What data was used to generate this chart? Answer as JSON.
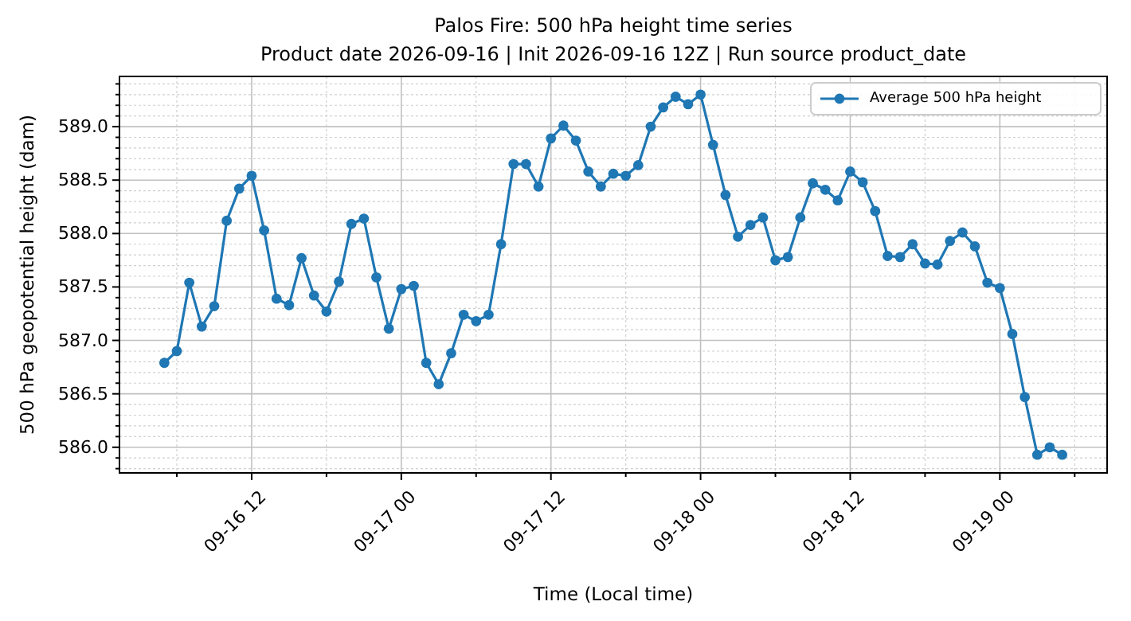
{
  "chart_data": {
    "type": "line",
    "title": "Palos Fire: 500 hPa height time series",
    "subtitle": "Product date 2026-09-16 | Init 2026-09-16 12Z | Run source product_date",
    "xlabel": "Time (Local time)",
    "ylabel": "500 hPa geopotential height (dam)",
    "x": [
      "2026-09-16T05:00",
      "2026-09-16T06:00",
      "2026-09-16T07:00",
      "2026-09-16T08:00",
      "2026-09-16T09:00",
      "2026-09-16T10:00",
      "2026-09-16T11:00",
      "2026-09-16T12:00",
      "2026-09-16T13:00",
      "2026-09-16T14:00",
      "2026-09-16T15:00",
      "2026-09-16T16:00",
      "2026-09-16T17:00",
      "2026-09-16T18:00",
      "2026-09-16T19:00",
      "2026-09-16T20:00",
      "2026-09-16T21:00",
      "2026-09-16T22:00",
      "2026-09-16T23:00",
      "2026-09-17T00:00",
      "2026-09-17T01:00",
      "2026-09-17T02:00",
      "2026-09-17T03:00",
      "2026-09-17T04:00",
      "2026-09-17T05:00",
      "2026-09-17T06:00",
      "2026-09-17T07:00",
      "2026-09-17T08:00",
      "2026-09-17T09:00",
      "2026-09-17T10:00",
      "2026-09-17T11:00",
      "2026-09-17T12:00",
      "2026-09-17T13:00",
      "2026-09-17T14:00",
      "2026-09-17T15:00",
      "2026-09-17T16:00",
      "2026-09-17T17:00",
      "2026-09-17T18:00",
      "2026-09-17T19:00",
      "2026-09-17T20:00",
      "2026-09-17T21:00",
      "2026-09-17T22:00",
      "2026-09-17T23:00",
      "2026-09-18T00:00",
      "2026-09-18T01:00",
      "2026-09-18T02:00",
      "2026-09-18T03:00",
      "2026-09-18T04:00",
      "2026-09-18T05:00",
      "2026-09-18T06:00",
      "2026-09-18T07:00",
      "2026-09-18T08:00",
      "2026-09-18T09:00",
      "2026-09-18T10:00",
      "2026-09-18T11:00",
      "2026-09-18T12:00",
      "2026-09-18T13:00",
      "2026-09-18T14:00",
      "2026-09-18T15:00",
      "2026-09-18T16:00",
      "2026-09-18T17:00",
      "2026-09-18T18:00",
      "2026-09-18T19:00",
      "2026-09-18T20:00",
      "2026-09-18T21:00",
      "2026-09-18T22:00",
      "2026-09-18T23:00",
      "2026-09-19T00:00",
      "2026-09-19T01:00",
      "2026-09-19T02:00",
      "2026-09-19T03:00",
      "2026-09-19T04:00",
      "2026-09-19T05:00"
    ],
    "series": [
      {
        "name": "Average 500 hPa height",
        "color": "#1f77b4",
        "values": [
          586.79,
          586.9,
          587.54,
          587.13,
          587.32,
          588.12,
          588.42,
          588.54,
          588.03,
          587.39,
          587.33,
          587.77,
          587.42,
          587.27,
          587.55,
          588.09,
          588.14,
          587.59,
          587.11,
          587.48,
          587.51,
          586.79,
          586.59,
          586.88,
          587.24,
          587.18,
          587.24,
          587.9,
          588.65,
          588.65,
          588.44,
          588.89,
          589.01,
          588.87,
          588.58,
          588.44,
          588.56,
          588.54,
          588.64,
          589.0,
          589.18,
          589.28,
          589.21,
          589.3,
          588.83,
          588.36,
          587.97,
          588.08,
          588.15,
          587.75,
          587.78,
          588.15,
          588.47,
          588.41,
          588.31,
          588.58,
          588.48,
          588.21,
          587.79,
          587.78,
          587.9,
          587.72,
          587.71,
          587.93,
          588.01,
          587.88,
          587.54,
          587.49,
          587.06,
          586.47,
          585.93,
          586.0,
          585.93
        ]
      }
    ],
    "xlim": [
      "2026-09-16T01:24",
      "2026-09-19T08:36"
    ],
    "xticks": [
      {
        "value": "2026-09-16T06:00",
        "label": null
      },
      {
        "value": "2026-09-16T12:00",
        "label": "09-16 12"
      },
      {
        "value": "2026-09-16T18:00",
        "label": null
      },
      {
        "value": "2026-09-17T00:00",
        "label": "09-17 00"
      },
      {
        "value": "2026-09-17T06:00",
        "label": null
      },
      {
        "value": "2026-09-17T12:00",
        "label": "09-17 12"
      },
      {
        "value": "2026-09-17T18:00",
        "label": null
      },
      {
        "value": "2026-09-18T00:00",
        "label": "09-18 00"
      },
      {
        "value": "2026-09-18T06:00",
        "label": null
      },
      {
        "value": "2026-09-18T12:00",
        "label": "09-18 12"
      },
      {
        "value": "2026-09-18T18:00",
        "label": null
      },
      {
        "value": "2026-09-19T00:00",
        "label": "09-19 00"
      },
      {
        "value": "2026-09-19T06:00",
        "label": null
      }
    ],
    "ylim": [
      585.76,
      589.47
    ],
    "yticks": [
      {
        "value": 585.8,
        "label": null
      },
      {
        "value": 585.9,
        "label": null
      },
      {
        "value": 586.0,
        "label": "586.0"
      },
      {
        "value": 586.1,
        "label": null
      },
      {
        "value": 586.2,
        "label": null
      },
      {
        "value": 586.3,
        "label": null
      },
      {
        "value": 586.4,
        "label": null
      },
      {
        "value": 586.5,
        "label": "586.5"
      },
      {
        "value": 586.6,
        "label": null
      },
      {
        "value": 586.7,
        "label": null
      },
      {
        "value": 586.8,
        "label": null
      },
      {
        "value": 586.9,
        "label": null
      },
      {
        "value": 587.0,
        "label": "587.0"
      },
      {
        "value": 587.1,
        "label": null
      },
      {
        "value": 587.2,
        "label": null
      },
      {
        "value": 587.3,
        "label": null
      },
      {
        "value": 587.4,
        "label": null
      },
      {
        "value": 587.5,
        "label": "587.5"
      },
      {
        "value": 587.6,
        "label": null
      },
      {
        "value": 587.7,
        "label": null
      },
      {
        "value": 587.8,
        "label": null
      },
      {
        "value": 587.9,
        "label": null
      },
      {
        "value": 588.0,
        "label": "588.0"
      },
      {
        "value": 588.1,
        "label": null
      },
      {
        "value": 588.2,
        "label": null
      },
      {
        "value": 588.3,
        "label": null
      },
      {
        "value": 588.4,
        "label": null
      },
      {
        "value": 588.5,
        "label": "588.5"
      },
      {
        "value": 588.6,
        "label": null
      },
      {
        "value": 588.7,
        "label": null
      },
      {
        "value": 588.8,
        "label": null
      },
      {
        "value": 588.9,
        "label": null
      },
      {
        "value": 589.0,
        "label": "589.0"
      },
      {
        "value": 589.1,
        "label": null
      },
      {
        "value": 589.2,
        "label": null
      },
      {
        "value": 589.3,
        "label": null
      },
      {
        "value": 589.4,
        "label": null
      }
    ],
    "grid": true,
    "legend": "top right",
    "marker": "circle",
    "line_style": "solid"
  }
}
